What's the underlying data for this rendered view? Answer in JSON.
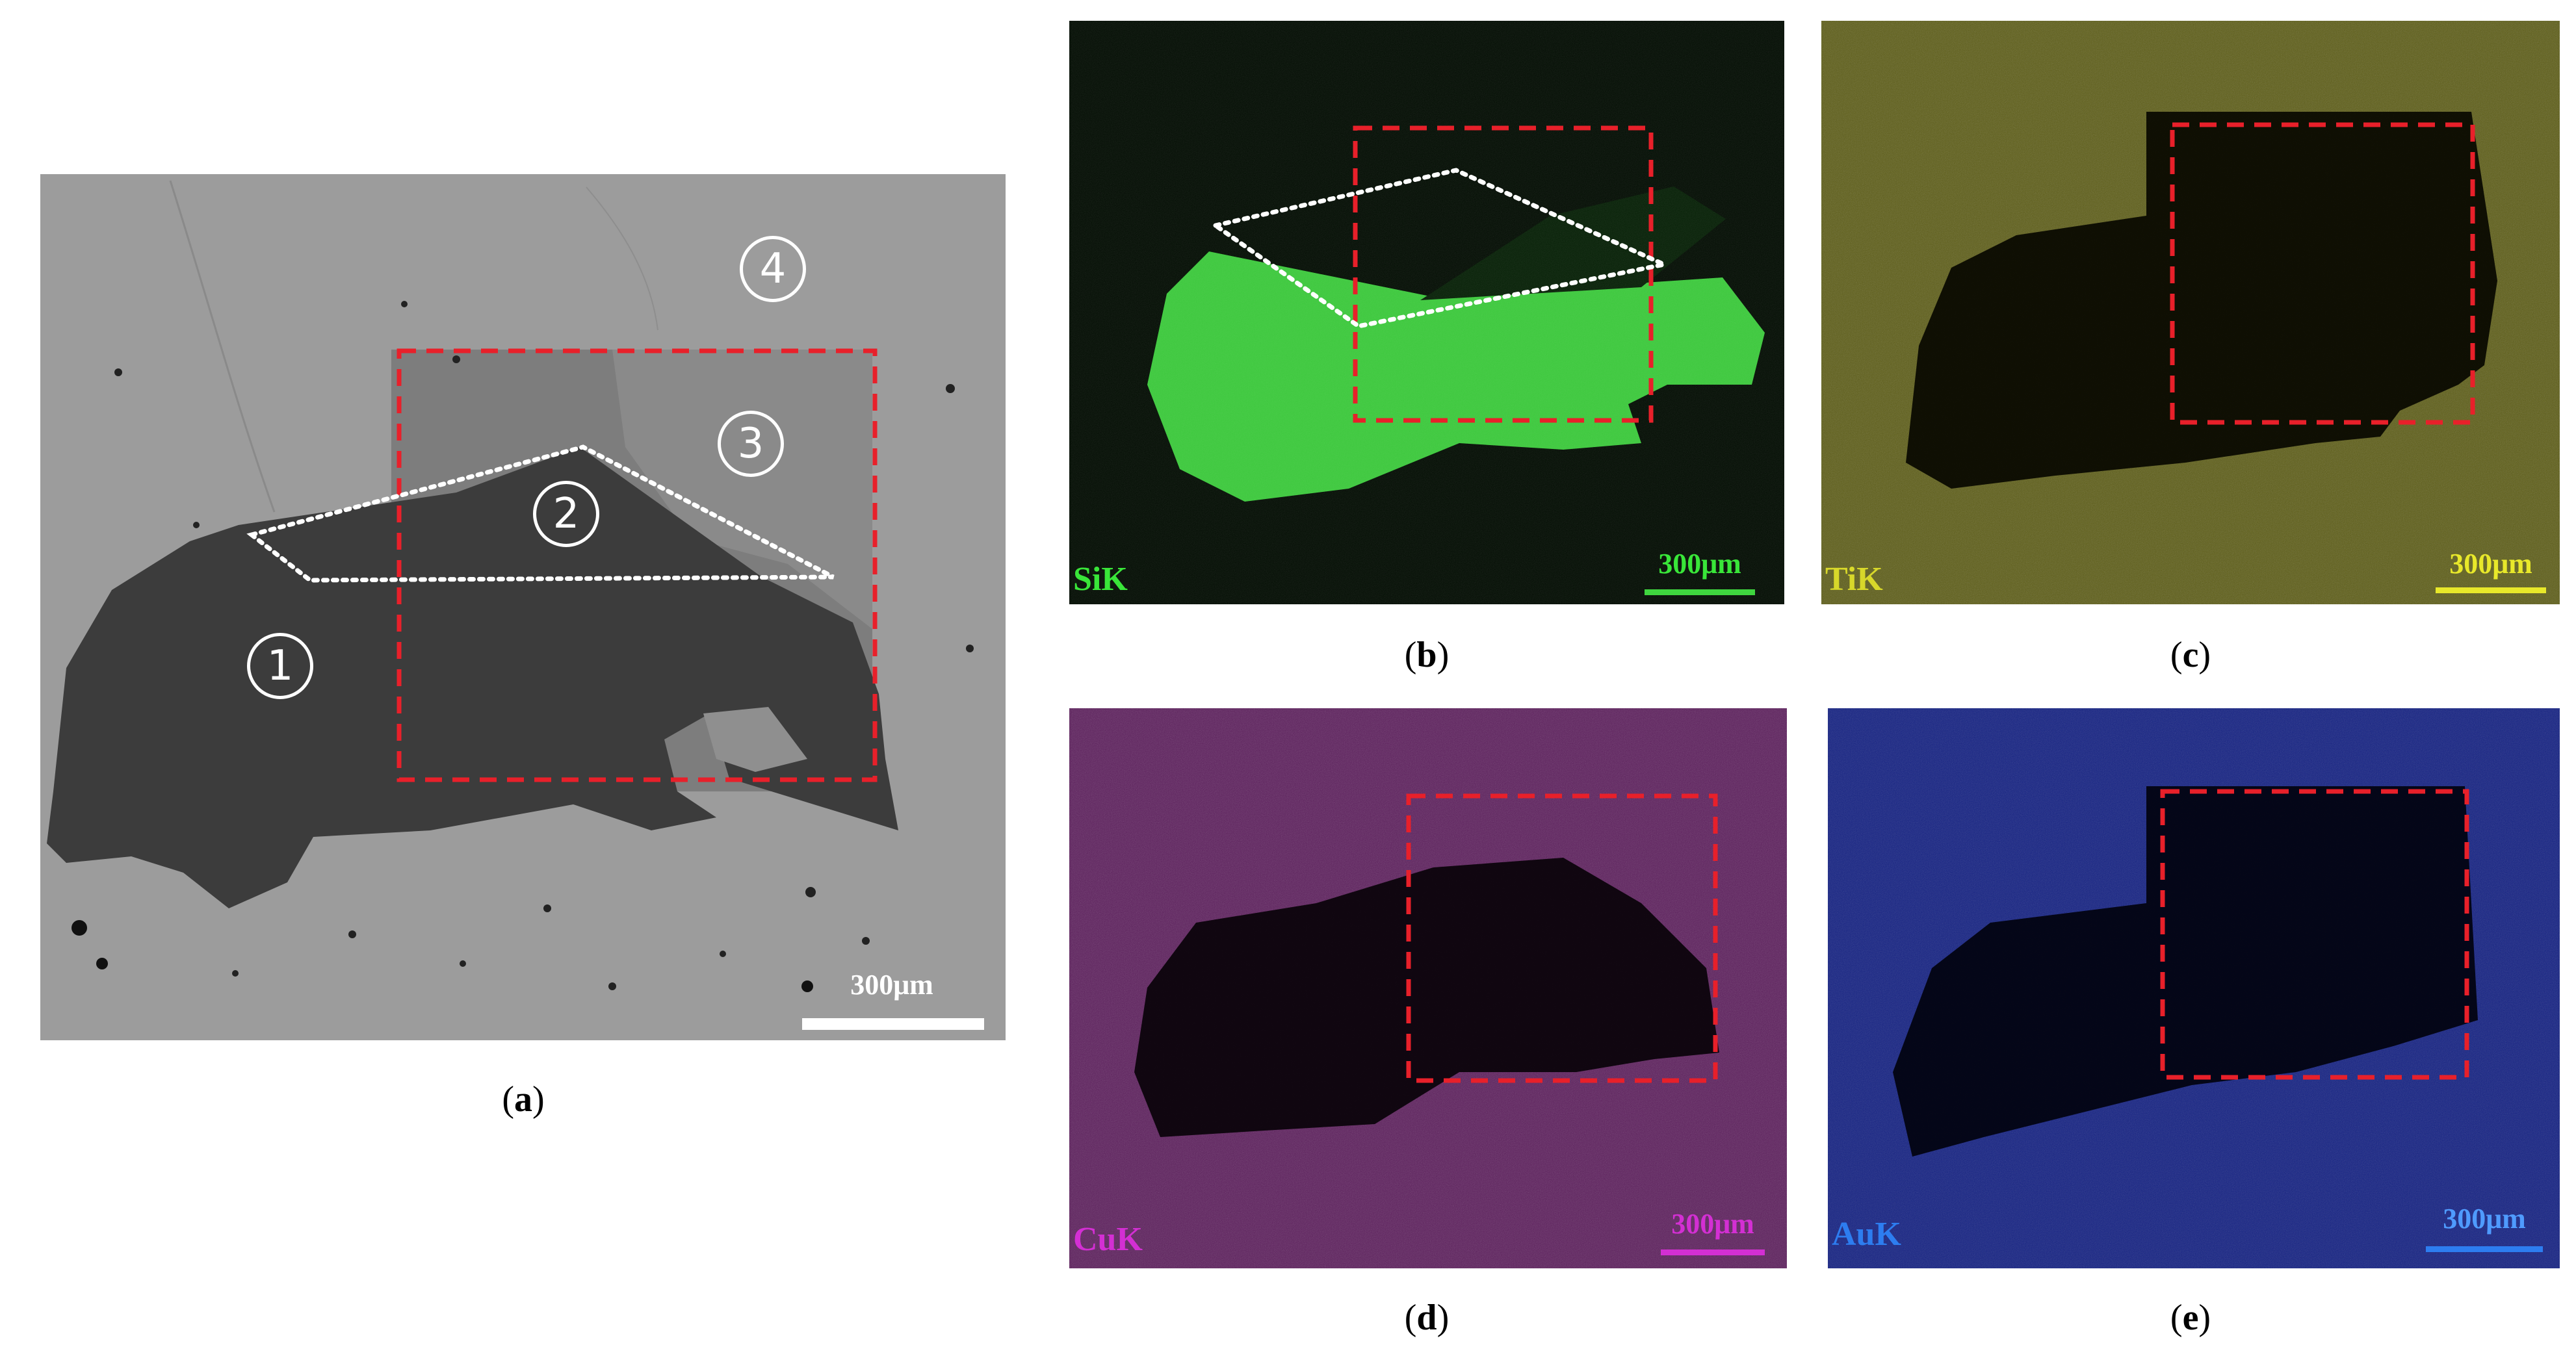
{
  "figure": {
    "panels": [
      {
        "id": "a",
        "caption": "a",
        "scale_bar": "300μm",
        "regions": [
          "1",
          "2",
          "3",
          "4"
        ],
        "annotations": [
          "red dashed rectangle",
          "white dotted outline"
        ]
      },
      {
        "id": "b",
        "caption": "b",
        "element": "SiK",
        "scale_bar": "300μm",
        "color": "#39e639"
      },
      {
        "id": "c",
        "caption": "c",
        "element": "TiK",
        "scale_bar": "300μm",
        "color": "#d8d82a"
      },
      {
        "id": "d",
        "caption": "d",
        "element": "CuK",
        "scale_bar": "300μm",
        "color": "#d32fd3"
      },
      {
        "id": "e",
        "caption": "e",
        "element": "AuK",
        "scale_bar": "300μm",
        "color": "#2d5cf0"
      }
    ]
  },
  "colors": {
    "dash_box": "#e8202a",
    "dots": "#ffffff",
    "sem_bg": "#9b9b9b",
    "sem_dark": "#3d3d3d"
  }
}
